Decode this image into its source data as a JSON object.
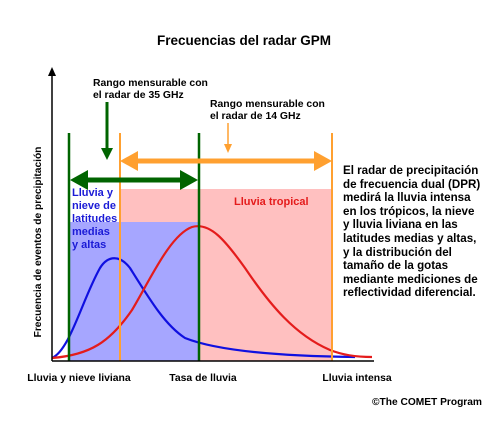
{
  "title": "Frecuencias del radar GPM",
  "y_axis_label": "Frecuencia de eventos de precipitación",
  "x_axis": {
    "left": "Lluvia y nieve liviana",
    "center": "Tasa de lluvia",
    "right": "Lluvia intensa"
  },
  "ranges": {
    "ka_band": {
      "line1": "Rango mensurable con",
      "line2": "el radar de 35 GHz",
      "color": "#006400"
    },
    "ku_band": {
      "line1": "Rango mensurable con",
      "line2": "el radar de 14 GHz",
      "color": "#ffa030"
    }
  },
  "regions": {
    "light": {
      "lines": [
        "Lluvia y",
        "nieve de",
        "latitudes",
        "medias",
        "y altas"
      ],
      "fill": "#a6a6ff",
      "text_color": "#1b1bd6"
    },
    "tropical": {
      "label": "Lluvia tropical",
      "fill": "#ffc0c0",
      "text_color": "#e41c1c"
    }
  },
  "curves": {
    "light_color": "#1010e0",
    "tropical_color": "#e41c1c"
  },
  "description": "El radar de precipitación de frecuencia dual (DPR) medirá la lluvia intensa en los trópicos, la nieve y lluvia liviana en las latitudes medias y altas, y la distribución del tamaño de la gotas mediante mediciones de reflectividad diferencial.",
  "copyright": "©The COMET Program"
}
